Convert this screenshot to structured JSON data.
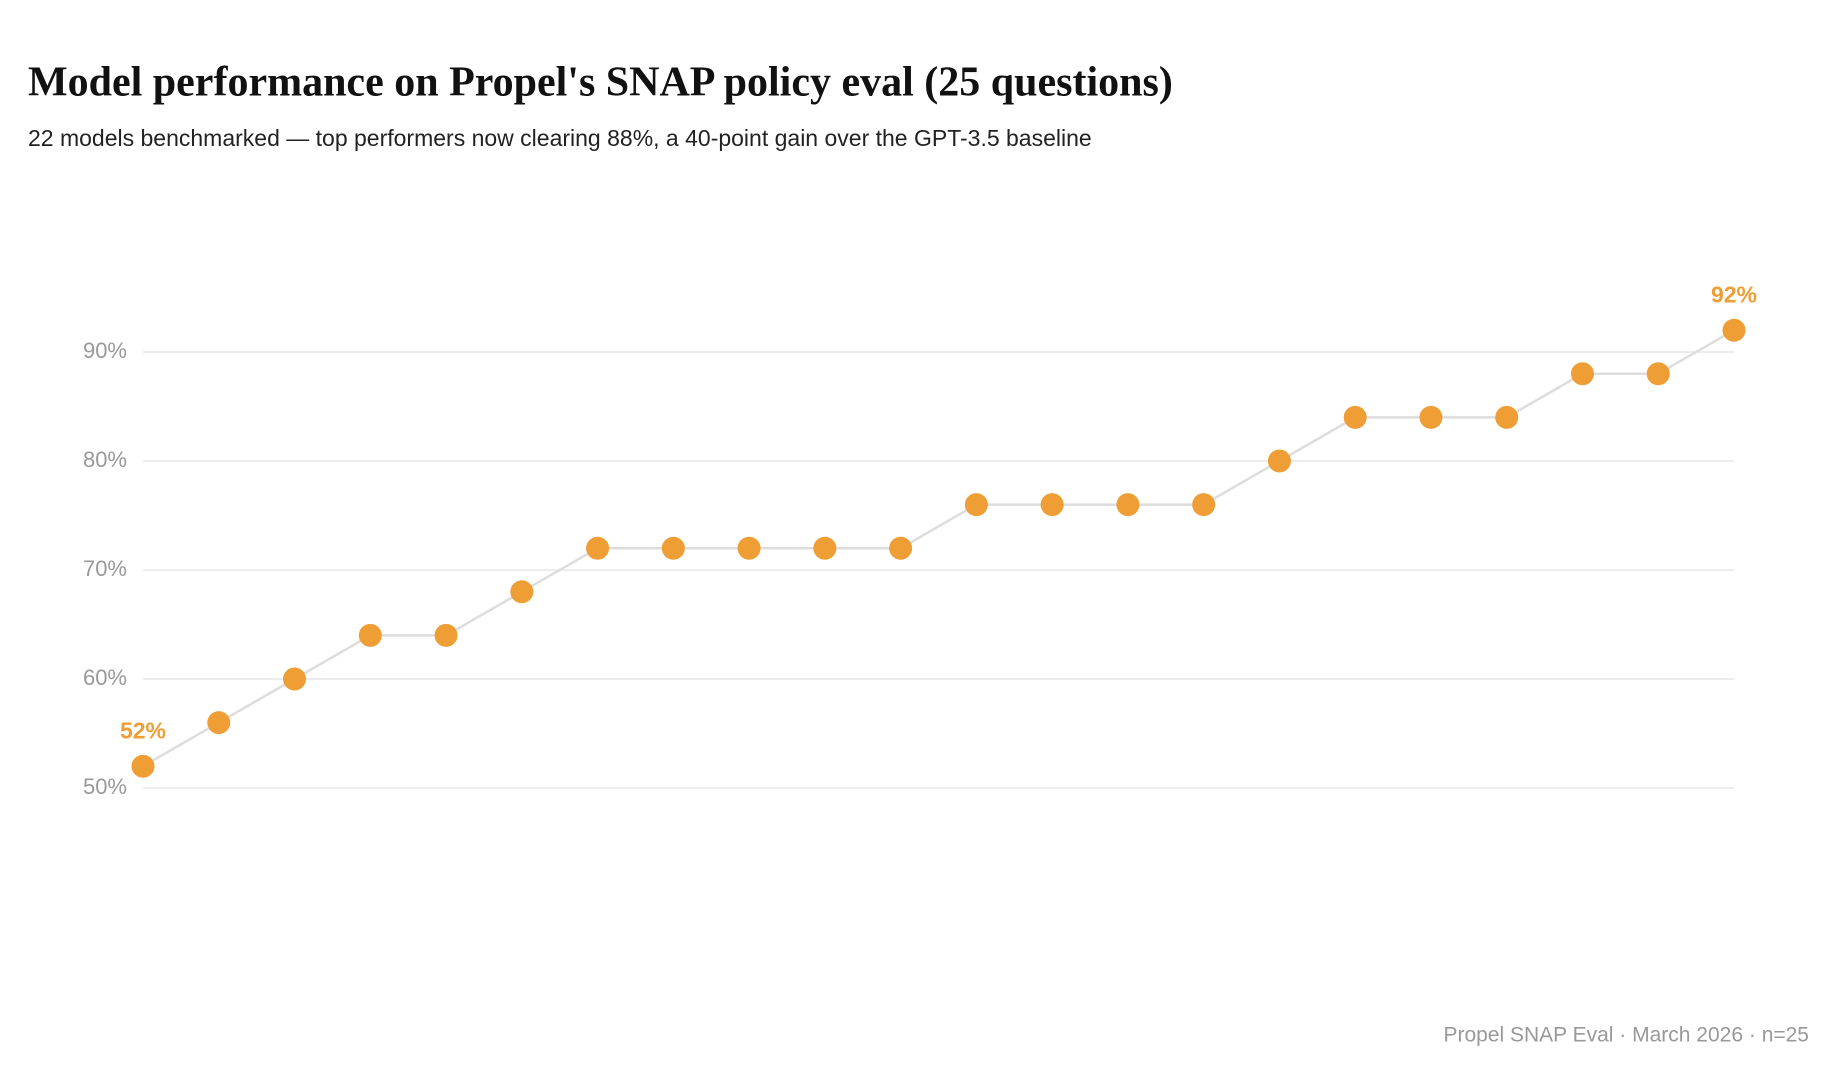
{
  "chart_data": {
    "type": "line",
    "title": "Model performance on Propel's SNAP policy eval (25 questions)",
    "subtitle": "22 models benchmarked — top performers now clearing 88%, a 40-point gain over the GPT-3.5 baseline",
    "source": "Propel SNAP Eval · March 2026 · n=25",
    "values": [
      52,
      56,
      60,
      64,
      64,
      68,
      72,
      72,
      72,
      72,
      72,
      76,
      76,
      76,
      76,
      80,
      84,
      84,
      84,
      88,
      88,
      92
    ],
    "value_labels": [
      "52%",
      null,
      null,
      null,
      null,
      null,
      null,
      null,
      null,
      null,
      null,
      null,
      null,
      null,
      null,
      null,
      null,
      null,
      null,
      null,
      null,
      "92%"
    ],
    "color": "#ee9e35",
    "line_color": "#dddddd",
    "ylim": [
      50,
      90
    ],
    "yticks": [
      {
        "value": 50,
        "label": "50%"
      },
      {
        "value": 60,
        "label": "60%"
      },
      {
        "value": 70,
        "label": "70%"
      },
      {
        "value": 80,
        "label": "80%"
      },
      {
        "value": 90,
        "label": "90%"
      }
    ],
    "grid": true
  }
}
